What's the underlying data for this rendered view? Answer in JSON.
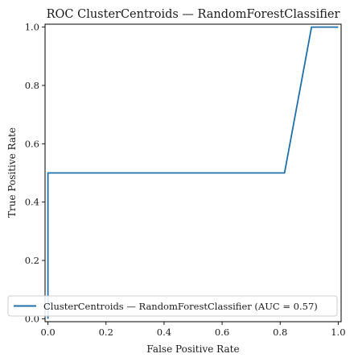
{
  "chart_data": {
    "type": "line",
    "title": "ROC ClusterCentroids — RandomForestClassifier",
    "xlabel": "False Positive Rate",
    "ylabel": "True Positive Rate",
    "xlim": [
      -0.01,
      1.01
    ],
    "ylim": [
      -0.01,
      1.01
    ],
    "xticks": [
      0.0,
      0.2,
      0.4,
      0.6,
      0.8,
      1.0
    ],
    "xtick_labels": [
      "0.0",
      "0.2",
      "0.4",
      "0.6",
      "0.8",
      "1.0"
    ],
    "yticks": [
      0.0,
      0.2,
      0.4,
      0.6,
      0.8,
      1.0
    ],
    "ytick_labels": [
      "0.0",
      "0.2",
      "0.4",
      "0.6",
      "0.8",
      "1.0"
    ],
    "grid": false,
    "legend_position": "lower-right",
    "series": [
      {
        "name": "ClusterCentroids — RandomForestClassifier (AUC = 0.57)",
        "color": "#1f6fa8",
        "x": [
          0.0,
          0.0,
          0.0,
          0.0,
          0.815,
          0.908,
          1.0
        ],
        "y": [
          0.0,
          0.03,
          0.03,
          0.5,
          0.5,
          1.0,
          1.0
        ]
      }
    ]
  }
}
